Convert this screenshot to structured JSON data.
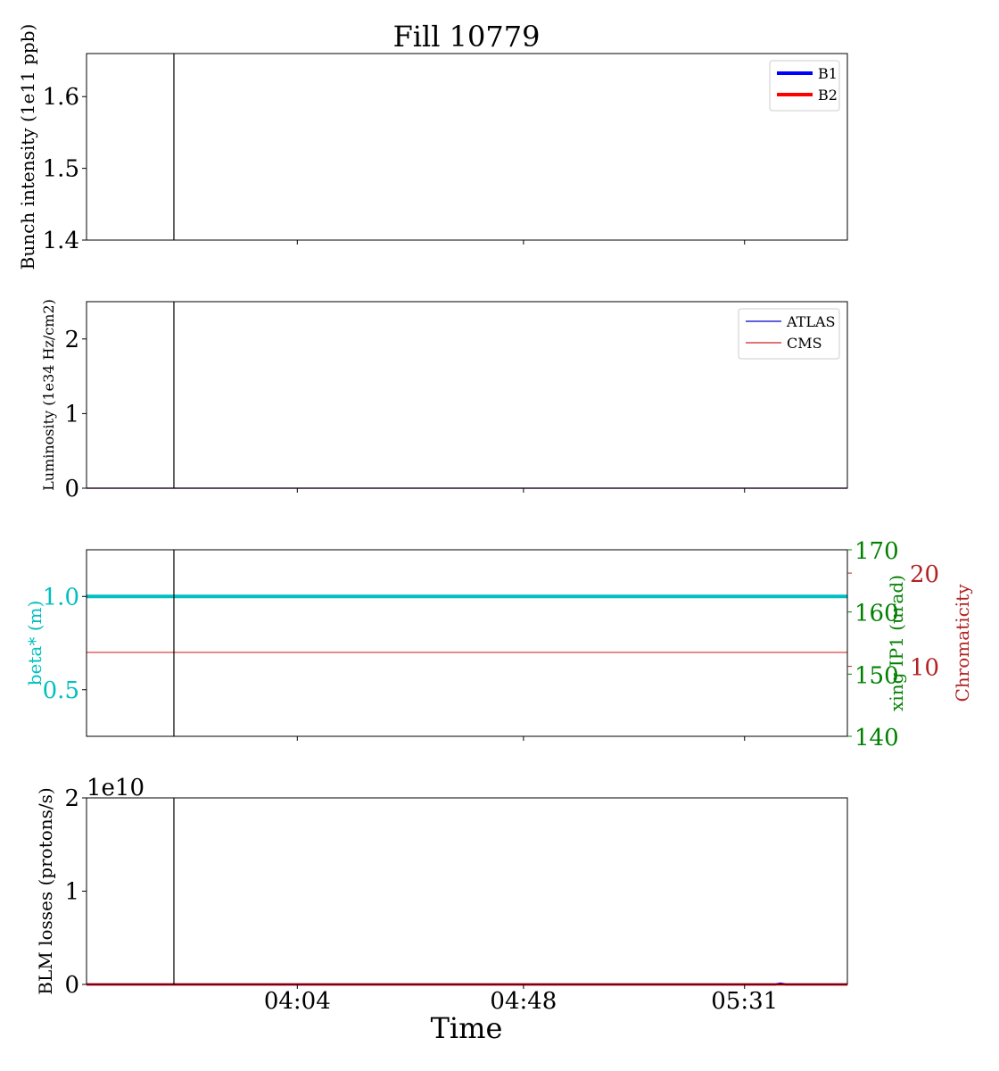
{
  "chart_data": {
    "title": "Fill 10779",
    "shared_x": {
      "label": "Time",
      "range": [
        "03:23",
        "05:51"
      ],
      "ticks": [
        "04:04",
        "04:48",
        "05:31"
      ],
      "cursor": "03:40"
    },
    "panels": [
      {
        "type": "line",
        "ylabel": "Bunch intensity (1e11 ppb)",
        "ylim": [
          1.4,
          1.66
        ],
        "yticks": [
          "1.4",
          "1.5",
          "1.6"
        ],
        "legend": {
          "position": "top-right",
          "entries": [
            "B1",
            "B2"
          ]
        },
        "series": [
          {
            "name": "B1",
            "color": "#0000ff",
            "points": []
          },
          {
            "name": "B2",
            "color": "#ff0000",
            "points": []
          }
        ]
      },
      {
        "type": "line",
        "ylabel": "Luminosity (1e34 Hz/cm2)",
        "ylim": [
          0,
          2.5
        ],
        "yticks": [
          "0",
          "1",
          "2"
        ],
        "legend": {
          "position": "top-right",
          "entries": [
            "ATLAS",
            "CMS"
          ]
        },
        "series": [
          {
            "name": "ATLAS",
            "color": "#0000cc",
            "points": [
              [
                "03:23",
                0
              ],
              [
                "05:51",
                0
              ]
            ]
          },
          {
            "name": "CMS",
            "color": "#cc2222",
            "points": [
              [
                "03:23",
                0
              ],
              [
                "05:51",
                0
              ]
            ]
          }
        ]
      },
      {
        "type": "line",
        "ylabel": "beta* (m)",
        "ylabel_color": "#00bfbf",
        "ylim": [
          0.25,
          1.25
        ],
        "yticks": [
          "0.5",
          "1.0"
        ],
        "right_axes": [
          {
            "label": "xing IP1 (urad)",
            "color": "#008000",
            "ylim": [
              140,
              170
            ],
            "ticks": [
              "140",
              "150",
              "160",
              "170"
            ]
          },
          {
            "label": "Chromaticity",
            "color": "#b22222",
            "ylim": [
              2.5,
              22.5
            ],
            "ticks": [
              "10",
              "20"
            ]
          }
        ],
        "series": [
          {
            "axis": "left",
            "color": "#00bfbf",
            "points": [
              [
                "03:23",
                1.0
              ],
              [
                "05:51",
                1.0
              ]
            ]
          },
          {
            "axis": "chromaticity",
            "color": "#dd4444",
            "points": [
              [
                "03:23",
                11.5
              ],
              [
                "05:51",
                11.5
              ]
            ]
          }
        ]
      },
      {
        "type": "line",
        "ylabel": "BLM losses (protons/s)",
        "offset_label": "1e10",
        "ylim": [
          0,
          2
        ],
        "yticks": [
          "0",
          "1",
          "2"
        ],
        "series": [
          {
            "color": "#0000ff",
            "points": [
              [
                "03:23",
                0
              ],
              [
                "05:37",
                0
              ],
              [
                "05:38",
                0.01
              ],
              [
                "05:39",
                0
              ],
              [
                "05:50",
                0
              ],
              [
                "05:51",
                0
              ]
            ]
          },
          {
            "color": "#ff0000",
            "points": [
              [
                "03:23",
                0
              ],
              [
                "05:51",
                0
              ]
            ]
          }
        ]
      }
    ]
  }
}
